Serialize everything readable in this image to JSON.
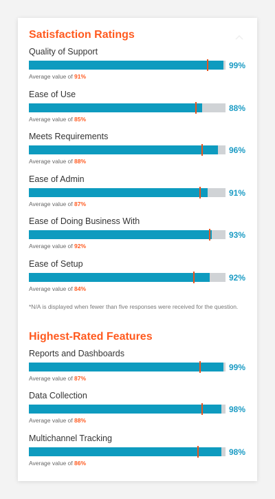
{
  "satisfaction": {
    "title": "Satisfaction Ratings",
    "items": [
      {
        "label": "Quality of Support",
        "score": 99,
        "score_text": "99%",
        "average": 91,
        "average_text": "91%"
      },
      {
        "label": "Ease of Use",
        "score": 88,
        "score_text": "88%",
        "average": 85,
        "average_text": "85%"
      },
      {
        "label": "Meets Requirements",
        "score": 96,
        "score_text": "96%",
        "average": 88,
        "average_text": "88%"
      },
      {
        "label": "Ease of Admin",
        "score": 91,
        "score_text": "91%",
        "average": 87,
        "average_text": "87%"
      },
      {
        "label": "Ease of Doing Business With",
        "score": 93,
        "score_text": "93%",
        "average": 92,
        "average_text": "92%"
      },
      {
        "label": "Ease of Setup",
        "score": 92,
        "score_text": "92%",
        "average": 84,
        "average_text": "84%"
      }
    ],
    "footnote": "*N/A is displayed when fewer than five responses were received for the question."
  },
  "features": {
    "title": "Highest-Rated Features",
    "items": [
      {
        "label": "Reports and Dashboards",
        "score": 99,
        "score_text": "99%",
        "average": 87,
        "average_text": "87%"
      },
      {
        "label": "Data Collection",
        "score": 98,
        "score_text": "98%",
        "average": 88,
        "average_text": "88%"
      },
      {
        "label": "Multichannel Tracking",
        "score": 98,
        "score_text": "98%",
        "average": 86,
        "average_text": "86%"
      }
    ]
  },
  "average_prefix": "Average value of ",
  "colors": {
    "accent": "#ff5a1f",
    "bar_fill": "#0e9bbf",
    "bar_track": "#d0d3d6",
    "marker": "#e8541e",
    "percent_text": "#1b9bc4"
  },
  "icons": {
    "collapse": "chevron-up-icon"
  }
}
